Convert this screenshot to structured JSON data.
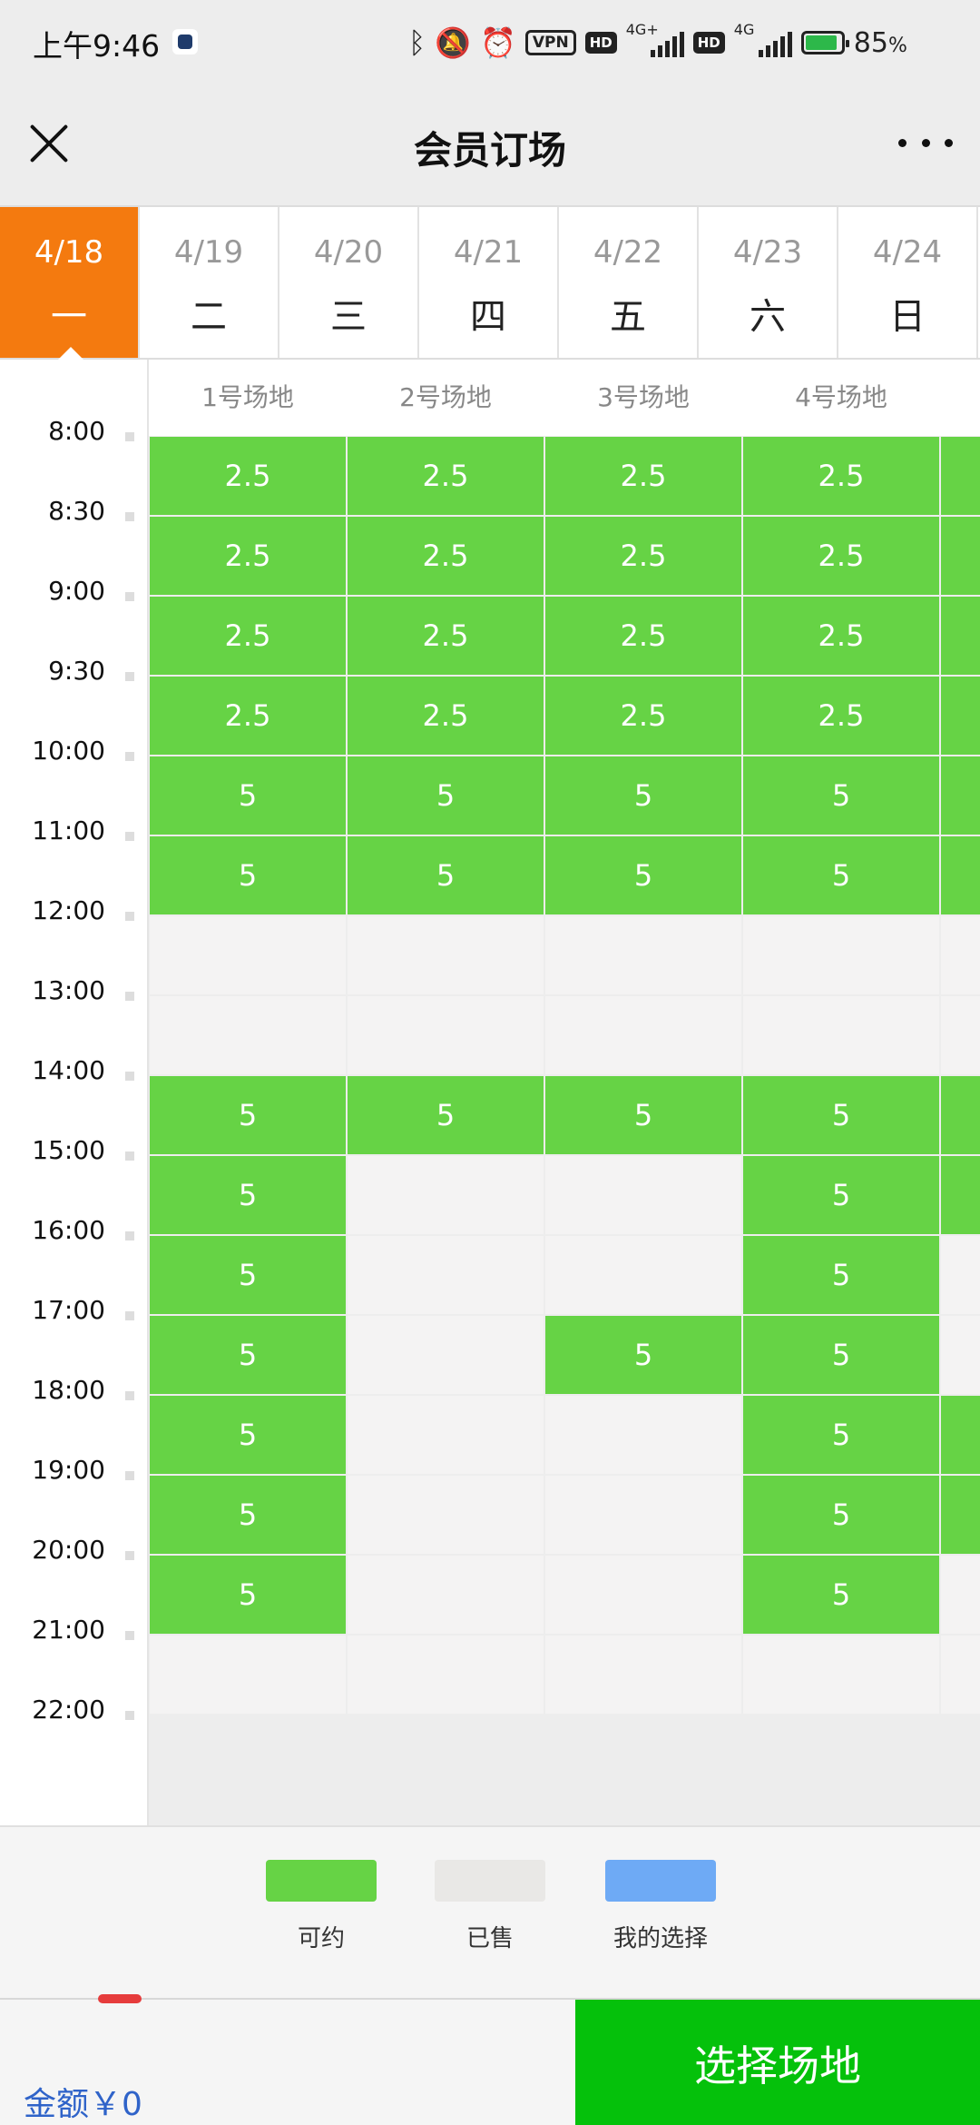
{
  "status_bar": {
    "time": "上午9:46",
    "vpn": "VPN",
    "hd": "HD",
    "net1": "4G+",
    "net2": "4G",
    "battery_pct": "85",
    "battery_unit": "%"
  },
  "nav": {
    "title": "会员订场"
  },
  "dates": [
    {
      "date": "4/18",
      "weekday": "一",
      "active": true
    },
    {
      "date": "4/19",
      "weekday": "二"
    },
    {
      "date": "4/20",
      "weekday": "三"
    },
    {
      "date": "4/21",
      "weekday": "四"
    },
    {
      "date": "4/22",
      "weekday": "五"
    },
    {
      "date": "4/23",
      "weekday": "六"
    },
    {
      "date": "4/24",
      "weekday": "日"
    }
  ],
  "courts": [
    "1号场地",
    "2号场地",
    "3号场地",
    "4号场地"
  ],
  "times": [
    "8:00",
    "8:30",
    "9:00",
    "9:30",
    "10:00",
    "11:00",
    "12:00",
    "13:00",
    "14:00",
    "15:00",
    "16:00",
    "17:00",
    "18:00",
    "19:00",
    "20:00",
    "21:00",
    "22:00"
  ],
  "slots": [
    [
      "2.5",
      "2.5",
      "2.5",
      "2.5",
      "A"
    ],
    [
      "2.5",
      "2.5",
      "2.5",
      "2.5",
      "A"
    ],
    [
      "2.5",
      "2.5",
      "2.5",
      "2.5",
      "A"
    ],
    [
      "2.5",
      "2.5",
      "2.5",
      "2.5",
      "A"
    ],
    [
      "5",
      "5",
      "5",
      "5",
      "A"
    ],
    [
      "5",
      "5",
      "5",
      "5",
      "A"
    ],
    [
      "",
      "",
      "",
      "",
      ""
    ],
    [
      "",
      "",
      "",
      "",
      ""
    ],
    [
      "5",
      "5",
      "5",
      "5",
      "A"
    ],
    [
      "5",
      "",
      "",
      "5",
      "A"
    ],
    [
      "5",
      "",
      "",
      "5",
      ""
    ],
    [
      "5",
      "",
      "5",
      "5",
      ""
    ],
    [
      "5",
      "",
      "",
      "5",
      "A"
    ],
    [
      "5",
      "",
      "",
      "5",
      "A"
    ],
    [
      "5",
      "",
      "",
      "5",
      ""
    ],
    [
      "",
      "",
      "",
      "",
      ""
    ]
  ],
  "legend": [
    {
      "label": "可约",
      "color": "#66d345"
    },
    {
      "label": "已售",
      "color": "#e9e8e6"
    },
    {
      "label": "我的选择",
      "color": "#6eaaf5"
    }
  ],
  "footer": {
    "amount": "金额￥0",
    "button": "选择场地"
  }
}
